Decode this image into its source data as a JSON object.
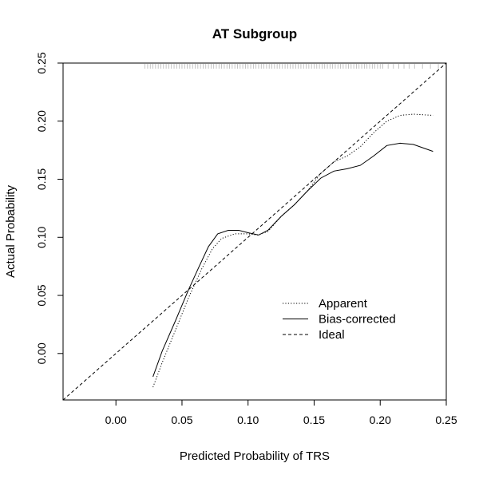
{
  "chart_data": {
    "type": "line",
    "title": "AT Subgroup",
    "xlabel": "Predicted Probability of TRS",
    "ylabel": "Actual Probability",
    "xlim": [
      -0.04,
      0.25
    ],
    "ylim": [
      -0.04,
      0.25
    ],
    "x_ticks": [
      "0.00",
      "0.05",
      "0.10",
      "0.15",
      "0.20",
      "0.25"
    ],
    "y_ticks": [
      "0.00",
      "0.05",
      "0.10",
      "0.15",
      "0.20",
      "0.25"
    ],
    "grid": false,
    "legend_position": "bottom-right",
    "series": [
      {
        "name": "Apparent",
        "line_style": "dotted",
        "points": [
          [
            0.028,
            -0.029
          ],
          [
            0.035,
            -0.008
          ],
          [
            0.045,
            0.02
          ],
          [
            0.055,
            0.048
          ],
          [
            0.065,
            0.073
          ],
          [
            0.073,
            0.09
          ],
          [
            0.08,
            0.099
          ],
          [
            0.09,
            0.103
          ],
          [
            0.1,
            0.103
          ],
          [
            0.107,
            0.102
          ],
          [
            0.115,
            0.105
          ],
          [
            0.125,
            0.118
          ],
          [
            0.135,
            0.128
          ],
          [
            0.145,
            0.14
          ],
          [
            0.155,
            0.155
          ],
          [
            0.165,
            0.165
          ],
          [
            0.175,
            0.17
          ],
          [
            0.185,
            0.178
          ],
          [
            0.195,
            0.19
          ],
          [
            0.205,
            0.2
          ],
          [
            0.215,
            0.205
          ],
          [
            0.225,
            0.206
          ],
          [
            0.24,
            0.205
          ]
        ]
      },
      {
        "name": "Bias-corrected",
        "line_style": "solid",
        "points": [
          [
            0.028,
            -0.02
          ],
          [
            0.035,
            0.002
          ],
          [
            0.045,
            0.028
          ],
          [
            0.055,
            0.055
          ],
          [
            0.063,
            0.075
          ],
          [
            0.07,
            0.092
          ],
          [
            0.077,
            0.103
          ],
          [
            0.085,
            0.106
          ],
          [
            0.093,
            0.106
          ],
          [
            0.1,
            0.104
          ],
          [
            0.108,
            0.102
          ],
          [
            0.115,
            0.106
          ],
          [
            0.125,
            0.118
          ],
          [
            0.135,
            0.128
          ],
          [
            0.145,
            0.14
          ],
          [
            0.155,
            0.151
          ],
          [
            0.165,
            0.157
          ],
          [
            0.175,
            0.159
          ],
          [
            0.185,
            0.162
          ],
          [
            0.195,
            0.17
          ],
          [
            0.205,
            0.179
          ],
          [
            0.215,
            0.181
          ],
          [
            0.225,
            0.18
          ],
          [
            0.24,
            0.174
          ]
        ]
      },
      {
        "name": "Ideal",
        "line_style": "dashed",
        "points": [
          [
            -0.04,
            -0.04
          ],
          [
            0.25,
            0.25
          ]
        ]
      }
    ],
    "rug": {
      "position": "top",
      "x_values": [
        0.022,
        0.024,
        0.026,
        0.028,
        0.03,
        0.032,
        0.034,
        0.036,
        0.038,
        0.04,
        0.042,
        0.044,
        0.046,
        0.048,
        0.05,
        0.052,
        0.054,
        0.056,
        0.058,
        0.06,
        0.062,
        0.064,
        0.066,
        0.068,
        0.07,
        0.072,
        0.074,
        0.076,
        0.078,
        0.08,
        0.082,
        0.084,
        0.086,
        0.088,
        0.09,
        0.092,
        0.094,
        0.096,
        0.098,
        0.1,
        0.102,
        0.104,
        0.106,
        0.108,
        0.11,
        0.112,
        0.114,
        0.116,
        0.118,
        0.12,
        0.122,
        0.124,
        0.126,
        0.128,
        0.13,
        0.132,
        0.134,
        0.136,
        0.138,
        0.14,
        0.142,
        0.144,
        0.146,
        0.148,
        0.15,
        0.152,
        0.154,
        0.156,
        0.158,
        0.16,
        0.162,
        0.164,
        0.166,
        0.168,
        0.17,
        0.172,
        0.174,
        0.176,
        0.178,
        0.18,
        0.182,
        0.184,
        0.186,
        0.188,
        0.19,
        0.192,
        0.194,
        0.196,
        0.198,
        0.2,
        0.202,
        0.206,
        0.21,
        0.214,
        0.218,
        0.222,
        0.226,
        0.232,
        0.238,
        0.244
      ]
    }
  }
}
